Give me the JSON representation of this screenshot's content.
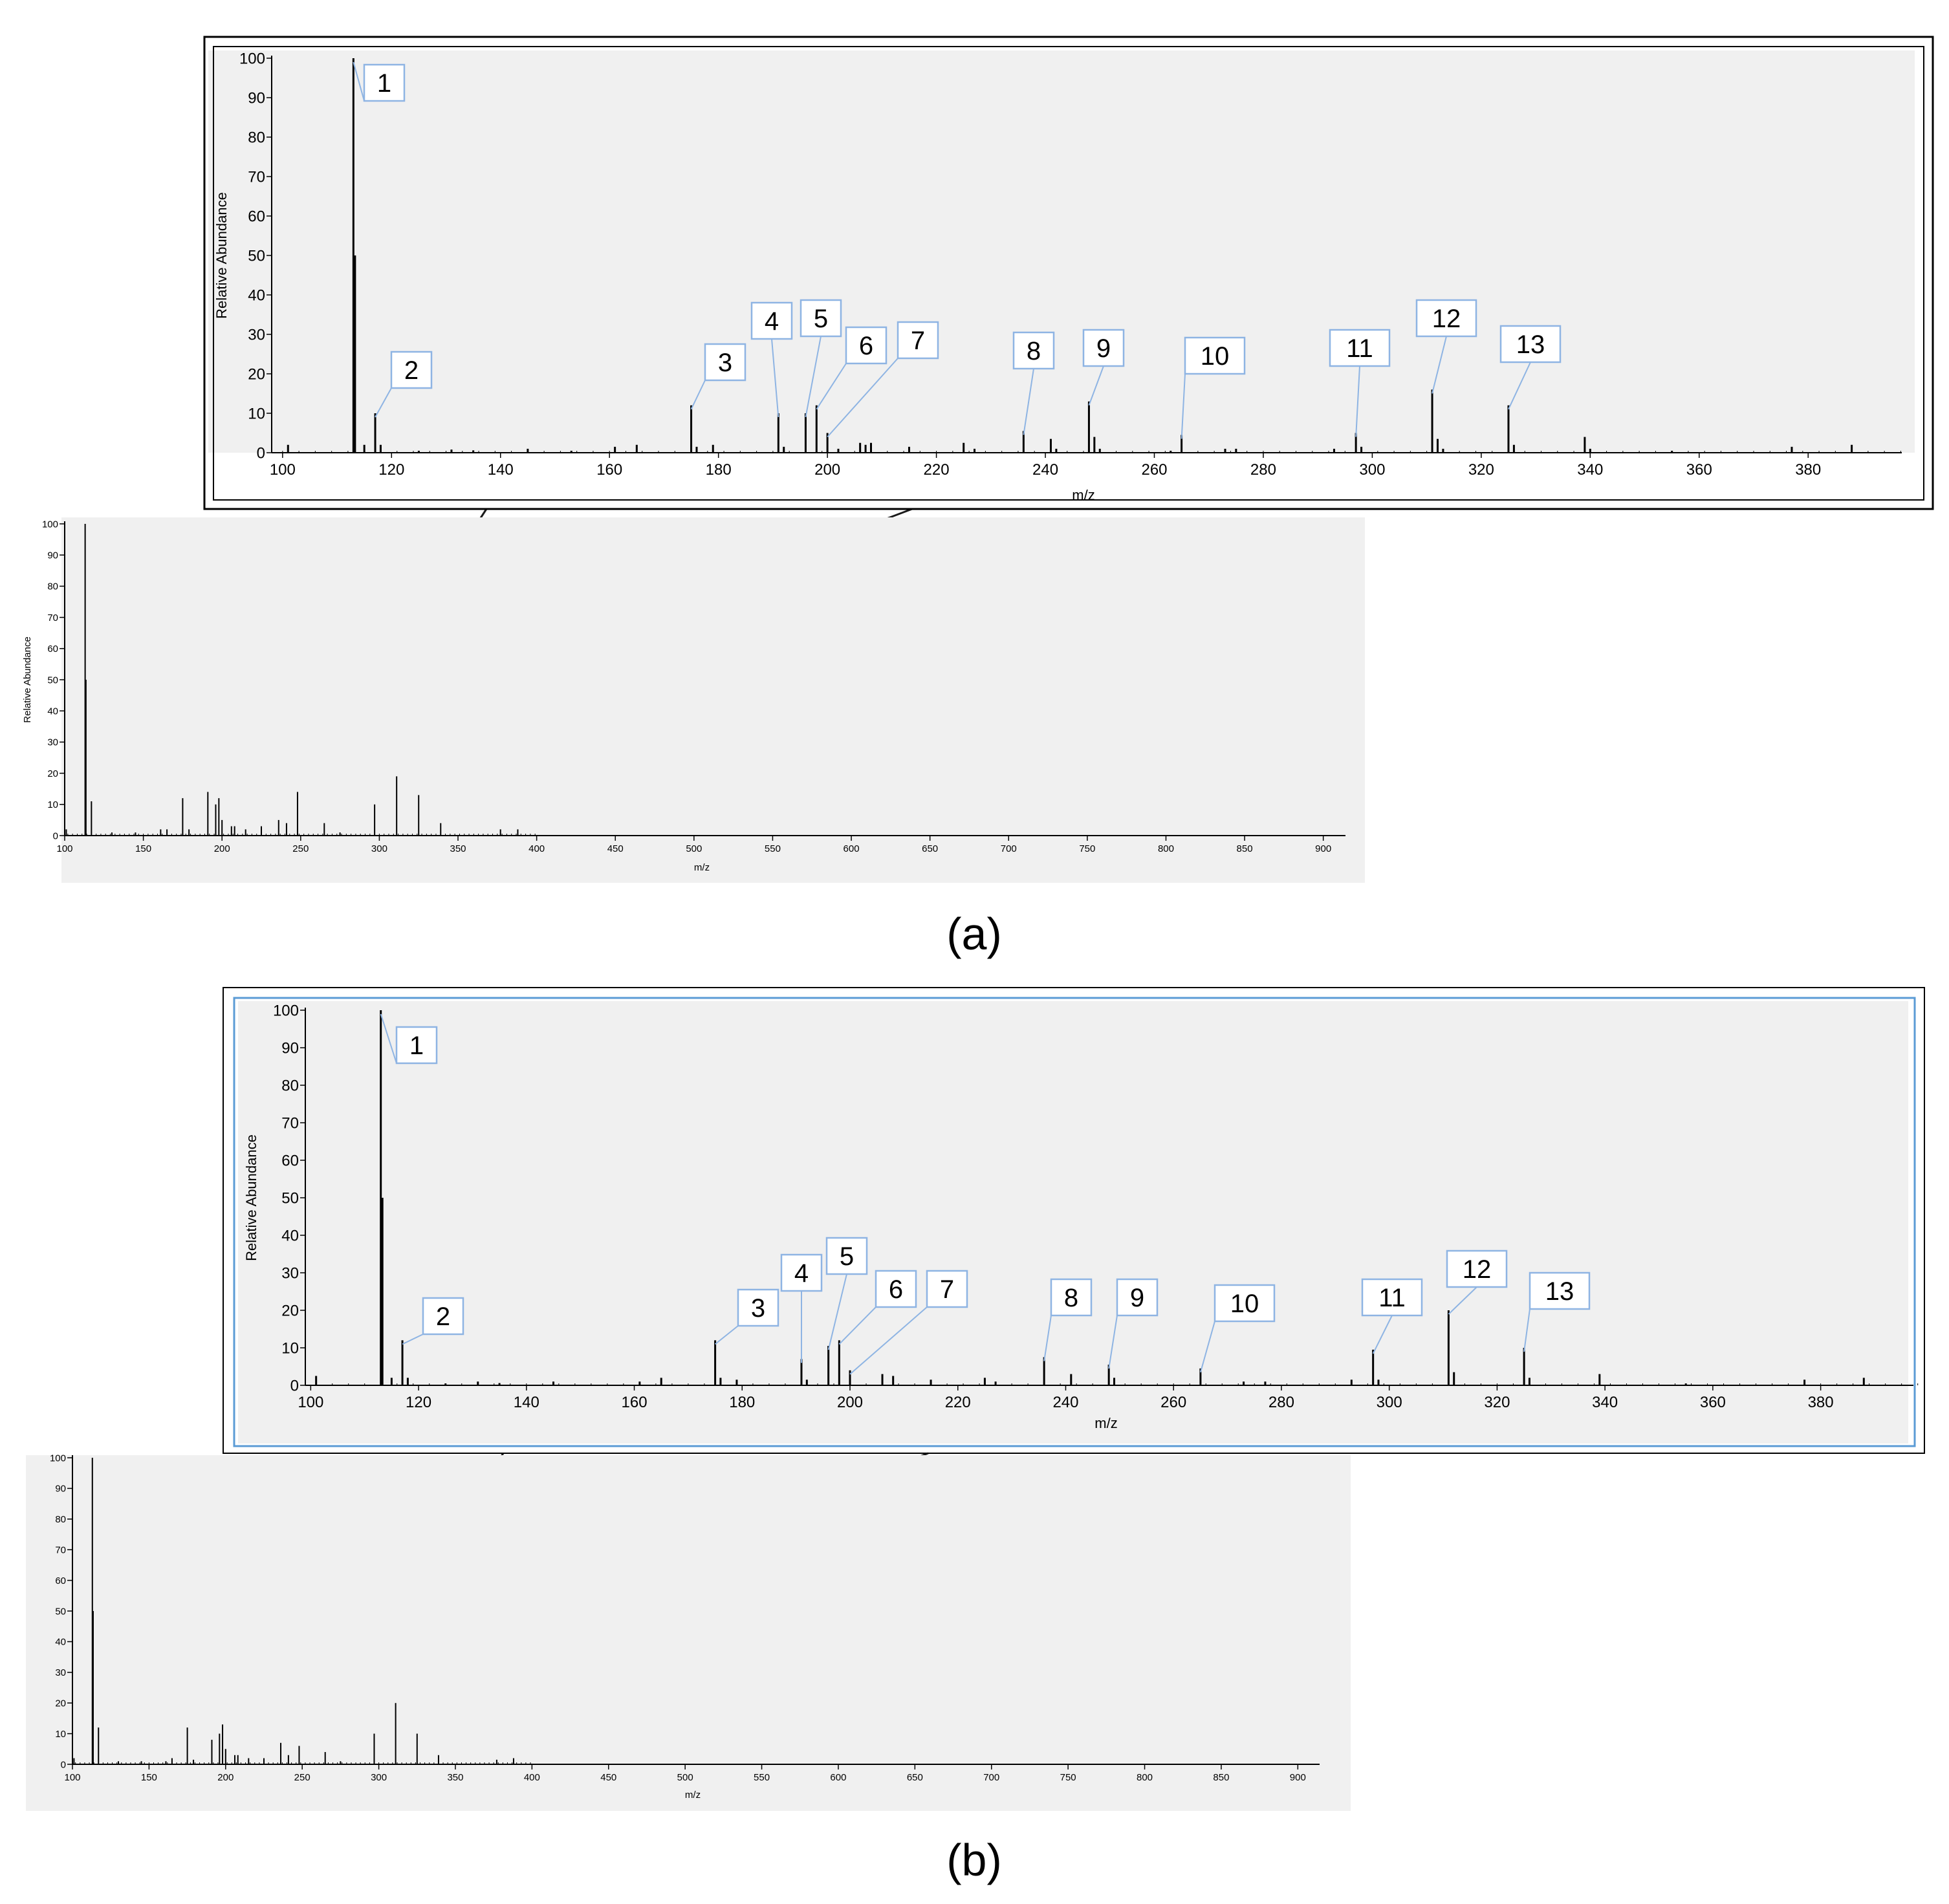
{
  "figure": {
    "panel_labels": [
      "(a)",
      "(b)"
    ],
    "peak_labels": [
      "1",
      "2",
      "3",
      "4",
      "5",
      "6",
      "7",
      "8",
      "9",
      "10",
      "11",
      "12",
      "13"
    ]
  },
  "colors": {
    "plot_bg": "#f0f0f0",
    "peak": "#000000",
    "callout_border": "#8eb4e3",
    "callout_line": "#8eb4e3",
    "zoom_frame_a": "#000000",
    "zoom_frame_b": "#5b9bd5"
  },
  "chart_data": [
    {
      "id": "a-zoom",
      "type": "bar",
      "xlabel": "m/z",
      "ylabel": "Relative Abundance",
      "xlim": [
        98,
        396
      ],
      "ylim": [
        0,
        100
      ],
      "xticks": [
        100,
        120,
        140,
        160,
        180,
        200,
        220,
        240,
        260,
        280,
        300,
        320,
        340,
        360,
        380
      ],
      "yticks": [
        0,
        10,
        20,
        30,
        40,
        50,
        60,
        70,
        80,
        90,
        100
      ],
      "peaks": [
        [
          101,
          2
        ],
        [
          113,
          100
        ],
        [
          113.3,
          50
        ],
        [
          115,
          2
        ],
        [
          117,
          10
        ],
        [
          118,
          2
        ],
        [
          125,
          0.5
        ],
        [
          131,
          0.8
        ],
        [
          135,
          0.6
        ],
        [
          145,
          1
        ],
        [
          153,
          0.5
        ],
        [
          161,
          1.5
        ],
        [
          165,
          2
        ],
        [
          175,
          12
        ],
        [
          176,
          1.5
        ],
        [
          179,
          2
        ],
        [
          191,
          10
        ],
        [
          192,
          1.5
        ],
        [
          196,
          10
        ],
        [
          198,
          12
        ],
        [
          200,
          5
        ],
        [
          202,
          1
        ],
        [
          206,
          2.5
        ],
        [
          207,
          2
        ],
        [
          208,
          2.5
        ],
        [
          215,
          1.5
        ],
        [
          225,
          2.5
        ],
        [
          227,
          1
        ],
        [
          236,
          5.5
        ],
        [
          241,
          3.5
        ],
        [
          242,
          1
        ],
        [
          248,
          13
        ],
        [
          249,
          4
        ],
        [
          250,
          1
        ],
        [
          263,
          0.5
        ],
        [
          265,
          4.5
        ],
        [
          273,
          1
        ],
        [
          275,
          1
        ],
        [
          293,
          1
        ],
        [
          297,
          5
        ],
        [
          298,
          1.5
        ],
        [
          311,
          16
        ],
        [
          312,
          3.5
        ],
        [
          313,
          1
        ],
        [
          325,
          12
        ],
        [
          326,
          2
        ],
        [
          339,
          4
        ],
        [
          340,
          1
        ],
        [
          355,
          0.5
        ],
        [
          377,
          1.5
        ],
        [
          388,
          2
        ]
      ],
      "labeled_peaks": [
        [
          113,
          1
        ],
        [
          117,
          2
        ],
        [
          175,
          3
        ],
        [
          191,
          4
        ],
        [
          196,
          5
        ],
        [
          198,
          6
        ],
        [
          200,
          7
        ],
        [
          236,
          8
        ],
        [
          248,
          9
        ],
        [
          265,
          10
        ],
        [
          297,
          11
        ],
        [
          311,
          12
        ],
        [
          325,
          13
        ]
      ]
    },
    {
      "id": "a-full",
      "type": "bar",
      "xlabel": "m/z",
      "ylabel": "Relative Abundance",
      "xlim": [
        100,
        910
      ],
      "ylim": [
        0,
        100
      ],
      "xticks": [
        100,
        150,
        200,
        250,
        300,
        350,
        400,
        450,
        500,
        550,
        600,
        650,
        700,
        750,
        800,
        850,
        900
      ],
      "yticks": [
        0,
        10,
        20,
        30,
        40,
        50,
        60,
        70,
        80,
        90,
        100
      ],
      "peaks": [
        [
          101,
          2
        ],
        [
          113,
          100
        ],
        [
          113.5,
          50
        ],
        [
          117,
          11
        ],
        [
          130,
          1
        ],
        [
          145,
          1
        ],
        [
          161,
          2
        ],
        [
          165,
          2
        ],
        [
          175,
          12
        ],
        [
          179,
          2
        ],
        [
          191,
          14
        ],
        [
          196,
          10
        ],
        [
          198,
          12
        ],
        [
          200,
          5
        ],
        [
          206,
          3
        ],
        [
          208,
          3
        ],
        [
          215,
          2
        ],
        [
          225,
          3
        ],
        [
          236,
          5
        ],
        [
          241,
          4
        ],
        [
          248,
          14
        ],
        [
          265,
          4
        ],
        [
          275,
          1
        ],
        [
          297,
          10
        ],
        [
          311,
          19
        ],
        [
          325,
          13
        ],
        [
          339,
          4
        ],
        [
          377,
          2
        ],
        [
          388,
          2
        ]
      ]
    },
    {
      "id": "b-zoom",
      "type": "bar",
      "xlabel": "m/z",
      "ylabel": "Relative Abundance",
      "xlim": [
        99,
        396
      ],
      "ylim": [
        0,
        100
      ],
      "xticks": [
        100,
        120,
        140,
        160,
        180,
        200,
        220,
        240,
        260,
        280,
        300,
        320,
        340,
        360,
        380
      ],
      "yticks": [
        0,
        10,
        20,
        30,
        40,
        50,
        60,
        70,
        80,
        90,
        100
      ],
      "peaks": [
        [
          101,
          2.5
        ],
        [
          113,
          100
        ],
        [
          113.3,
          50
        ],
        [
          115,
          2
        ],
        [
          117,
          12
        ],
        [
          118,
          2
        ],
        [
          125,
          0.5
        ],
        [
          131,
          1
        ],
        [
          135,
          0.6
        ],
        [
          145,
          1
        ],
        [
          161,
          1
        ],
        [
          165,
          2
        ],
        [
          175,
          12
        ],
        [
          176,
          2
        ],
        [
          179,
          1.5
        ],
        [
          191,
          7
        ],
        [
          192,
          1.5
        ],
        [
          196,
          10.5
        ],
        [
          198,
          12
        ],
        [
          200,
          4
        ],
        [
          206,
          3
        ],
        [
          208,
          2.5
        ],
        [
          215,
          1.5
        ],
        [
          225,
          2
        ],
        [
          227,
          1
        ],
        [
          236,
          7.5
        ],
        [
          241,
          3
        ],
        [
          248,
          5.5
        ],
        [
          249,
          2
        ],
        [
          265,
          4.5
        ],
        [
          273,
          1
        ],
        [
          277,
          1
        ],
        [
          293,
          1.5
        ],
        [
          297,
          9.5
        ],
        [
          298,
          1.5
        ],
        [
          311,
          20
        ],
        [
          312,
          3.5
        ],
        [
          325,
          10
        ],
        [
          326,
          2
        ],
        [
          339,
          3
        ],
        [
          355,
          0.5
        ],
        [
          377,
          1.5
        ],
        [
          388,
          2
        ]
      ],
      "labeled_peaks": [
        [
          113,
          1
        ],
        [
          117,
          2
        ],
        [
          175,
          3
        ],
        [
          191,
          4
        ],
        [
          196,
          5
        ],
        [
          198,
          6
        ],
        [
          200,
          7
        ],
        [
          236,
          8
        ],
        [
          248,
          9
        ],
        [
          265,
          10
        ],
        [
          297,
          11
        ],
        [
          311,
          12
        ],
        [
          325,
          13
        ]
      ]
    },
    {
      "id": "b-full",
      "type": "bar",
      "xlabel": "m/z",
      "ylabel": "Relative Abundance",
      "xlim": [
        100,
        910
      ],
      "ylim": [
        0,
        100
      ],
      "xticks": [
        100,
        150,
        200,
        250,
        300,
        350,
        400,
        450,
        500,
        550,
        600,
        650,
        700,
        750,
        800,
        850,
        900
      ],
      "yticks": [
        0,
        10,
        20,
        30,
        40,
        50,
        60,
        70,
        80,
        90,
        100
      ],
      "peaks": [
        [
          101,
          2
        ],
        [
          113,
          100
        ],
        [
          113.5,
          50
        ],
        [
          117,
          12
        ],
        [
          130,
          1
        ],
        [
          145,
          1
        ],
        [
          161,
          1
        ],
        [
          165,
          2
        ],
        [
          175,
          12
        ],
        [
          179,
          1.5
        ],
        [
          191,
          8
        ],
        [
          196,
          10
        ],
        [
          198,
          13
        ],
        [
          200,
          5
        ],
        [
          206,
          3
        ],
        [
          208,
          3
        ],
        [
          215,
          2
        ],
        [
          225,
          2
        ],
        [
          236,
          7
        ],
        [
          241,
          3
        ],
        [
          248,
          6
        ],
        [
          265,
          4
        ],
        [
          275,
          1
        ],
        [
          297,
          10
        ],
        [
          311,
          20
        ],
        [
          325,
          10
        ],
        [
          339,
          3
        ],
        [
          377,
          1.5
        ],
        [
          388,
          2
        ]
      ]
    }
  ]
}
